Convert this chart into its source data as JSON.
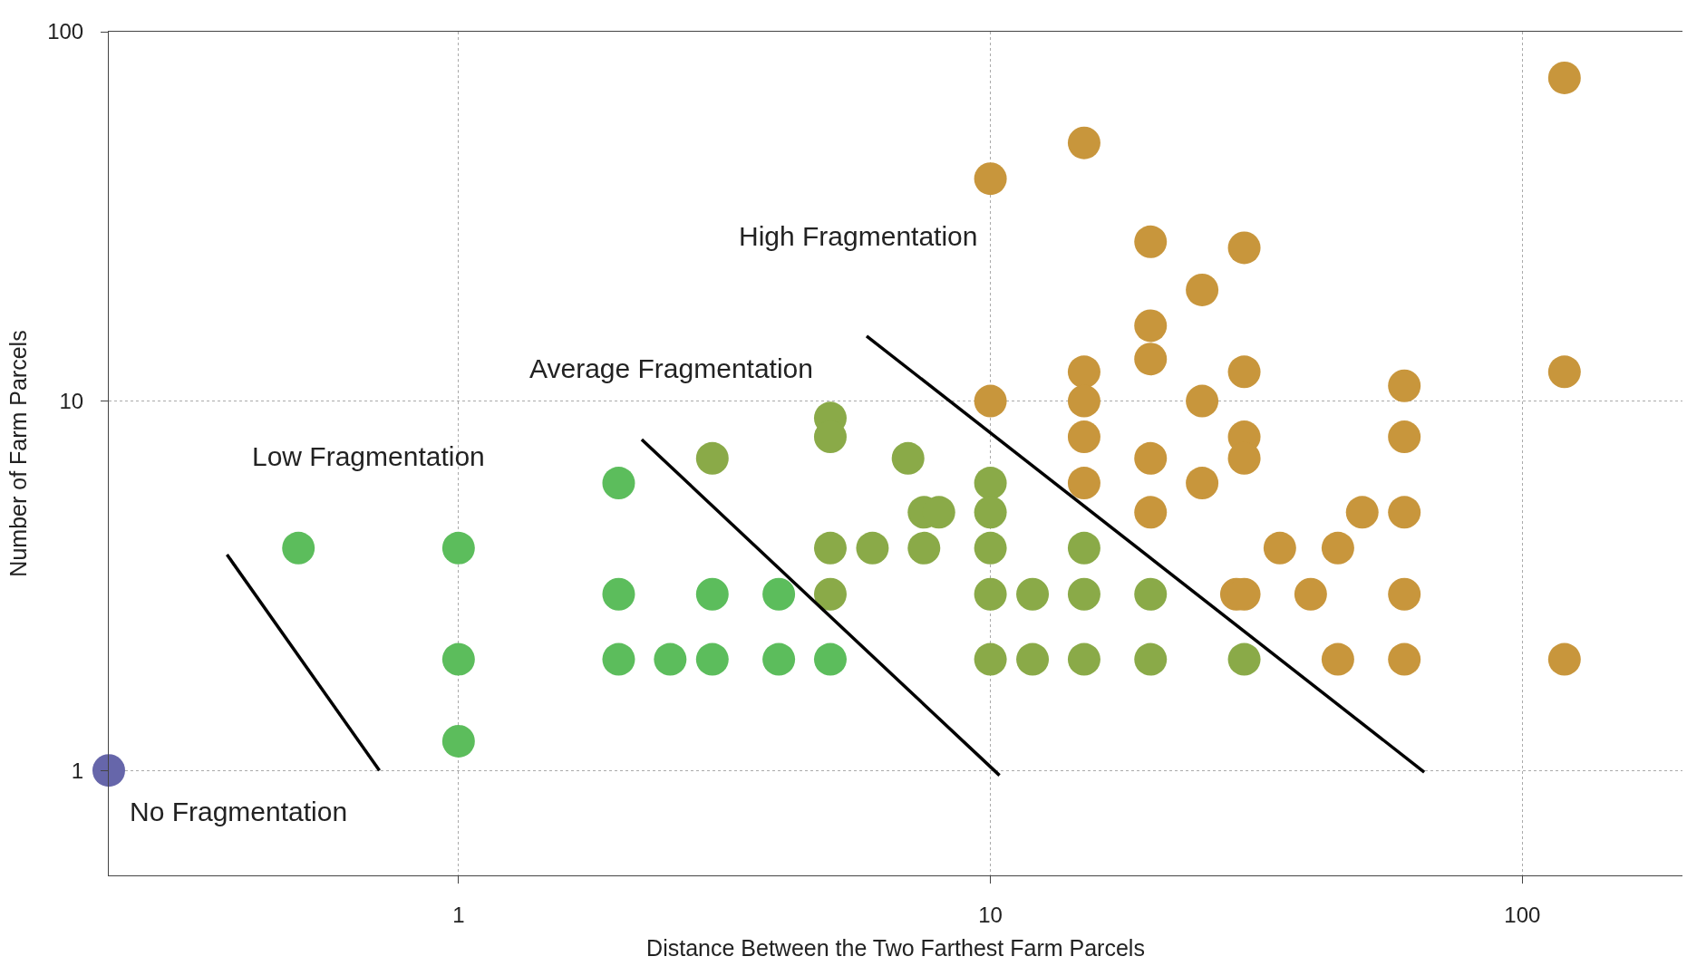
{
  "chart_data": {
    "type": "scatter",
    "xlabel": "Distance Between the Two Farthest Farm Parcels",
    "ylabel": "Number of Farm Parcels",
    "log": "xy",
    "xlim": [
      0.22,
      200
    ],
    "ylim": [
      0.52,
      100
    ],
    "xticks": [
      1,
      10,
      100
    ],
    "yticks": [
      1,
      10,
      100
    ],
    "grid": true,
    "marker": "circle",
    "series": [
      {
        "color": "#6666aa",
        "x": [
          0.22
        ],
        "values": [
          1
        ]
      },
      {
        "color": "#5cbd5c",
        "x": [
          0.5,
          1,
          1,
          1,
          2,
          2,
          2,
          2.5,
          3,
          3,
          4,
          4,
          5
        ],
        "values": [
          4,
          4,
          2,
          1.2,
          6,
          3,
          2,
          2,
          3,
          2,
          3,
          2,
          2
        ]
      },
      {
        "color": "#8aaa48",
        "x": [
          3,
          5,
          5,
          5,
          5,
          6,
          7,
          7.5,
          8,
          7.5,
          10,
          10,
          10,
          10,
          10,
          12,
          12,
          15,
          15,
          15,
          20,
          20,
          30
        ],
        "values": [
          7,
          9,
          8,
          4,
          3,
          4,
          7,
          5,
          5,
          4,
          6,
          5,
          4,
          3,
          2,
          3,
          2,
          4,
          3,
          2,
          3,
          2,
          2
        ]
      },
      {
        "color": "#c8963c",
        "x": [
          10,
          15,
          20,
          30,
          25,
          20,
          20,
          15,
          30,
          15,
          25,
          10,
          60,
          15,
          30,
          20,
          30,
          15,
          25,
          20,
          60,
          50,
          60,
          35,
          45,
          29,
          30,
          40,
          60,
          45,
          60,
          120,
          120,
          120
        ],
        "values": [
          40,
          50,
          27,
          26,
          20,
          16,
          13,
          12,
          12,
          10,
          10,
          10,
          11,
          8,
          8,
          7,
          7,
          6,
          6,
          5,
          8,
          5,
          5,
          4,
          4,
          3,
          3,
          3,
          3,
          2,
          2,
          2,
          12,
          75
        ]
      },
      {
        "type": "line",
        "color": "#000000",
        "marker": "none",
        "line_style": "solid",
        "x": [
          0.367,
          0.71
        ],
        "values": [
          3.84,
          1
        ]
      },
      {
        "type": "line",
        "color": "#000000",
        "marker": "none",
        "line_style": "solid",
        "x": [
          2.21,
          10.4
        ],
        "values": [
          7.87,
          0.97
        ]
      },
      {
        "type": "line",
        "color": "#000000",
        "marker": "none",
        "line_style": "solid",
        "x": [
          5.85,
          65.4
        ],
        "values": [
          15,
          0.99
        ]
      }
    ],
    "annotations": [
      "No Fragmentation",
      "Low Fragmentation",
      "Average Fragmentation",
      "High Fragmentation"
    ]
  }
}
